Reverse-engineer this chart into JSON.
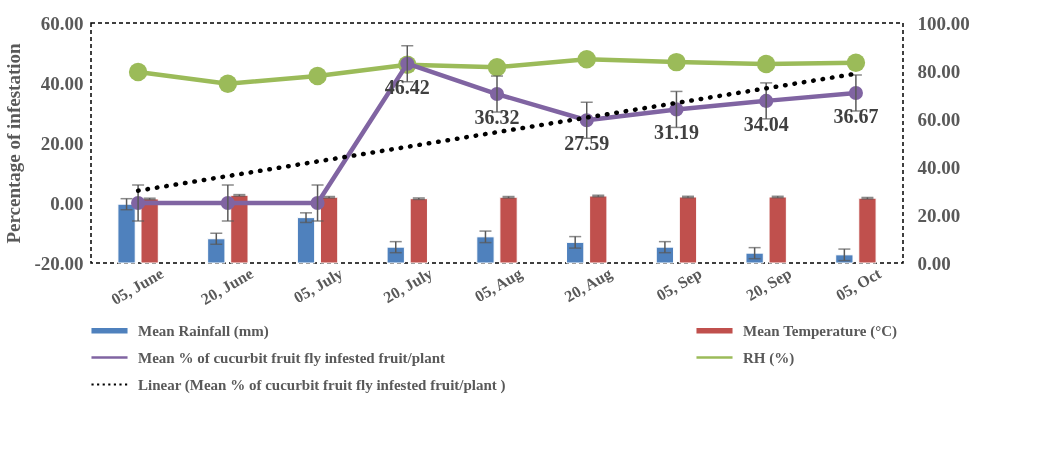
{
  "chart_data": {
    "type": "bar",
    "ylabel": "Percentage of infestation",
    "categories": [
      "05, June",
      "20, June",
      "05, July",
      "20, July",
      "05, Aug",
      "20, Aug",
      "05, Sep",
      "20, Sep",
      "05, Oct"
    ],
    "series": [
      {
        "name": "Mean Rainfall (mm)",
        "axis": "y2",
        "color": "#4f81bd",
        "values": [
          24.5,
          10.1,
          18.9,
          6.6,
          10.9,
          8.6,
          6.6,
          4.1,
          3.4
        ],
        "errors": [
          2.3,
          2.3,
          2.0,
          2.3,
          2.4,
          2.4,
          2.3,
          2.3,
          2.4
        ]
      },
      {
        "name": "Mean Temperature (°C)",
        "axis": "y2",
        "color": "#c0504d",
        "values": [
          26.7,
          28.2,
          27.4,
          26.8,
          27.4,
          27.9,
          27.5,
          27.5,
          27.0
        ],
        "errors": [
          0.3,
          0.3,
          0.3,
          0.3,
          0.3,
          0.3,
          0.3,
          0.3,
          0.3
        ]
      },
      {
        "name": "Mean % of cucurbit fruit fly infested fruit/plant",
        "type": "line",
        "color": "#8064a2",
        "marker": "circle",
        "values": [
          0,
          0,
          0,
          46.42,
          36.32,
          27.59,
          31.19,
          34.04,
          36.67
        ],
        "errors": [
          6,
          6,
          6,
          6,
          6,
          6,
          6,
          6,
          6
        ],
        "value_labels": [
          null,
          null,
          null,
          "46.42",
          "36.32",
          "27.59",
          "31.19",
          "34.04",
          "36.67"
        ]
      },
      {
        "name": "RH (%)",
        "type": "line",
        "axis": "y2",
        "color": "#9bbb59",
        "marker": "circle",
        "values": [
          79.6,
          74.7,
          77.9,
          82.6,
          81.6,
          84.9,
          83.7,
          82.9,
          83.4
        ]
      },
      {
        "name": "Linear (Mean % of cucurbit fruit fly infested fruit/plant )",
        "type": "line",
        "color": "#000000",
        "marker": "none",
        "line_style": "dotted",
        "x": [
          "05, June",
          "05, Oct"
        ],
        "values": [
          4.1,
          43.1
        ]
      }
    ],
    "ylim": [
      -20,
      60
    ],
    "yticks": [
      {
        "value": -20,
        "label": "-20.00"
      },
      {
        "value": 0,
        "label": "0.00"
      },
      {
        "value": 20,
        "label": "20.00"
      },
      {
        "value": 40,
        "label": "40.00"
      },
      {
        "value": 60,
        "label": "60.00"
      }
    ],
    "y2lim": [
      0,
      100
    ],
    "y2ticks": [
      {
        "value": 0,
        "label": "0.00"
      },
      {
        "value": 20,
        "label": "20.00"
      },
      {
        "value": 40,
        "label": "40.00"
      },
      {
        "value": 60,
        "label": "60.00"
      },
      {
        "value": 80,
        "label": "80.00"
      },
      {
        "value": 100,
        "label": "100.00"
      }
    ],
    "grid": false,
    "legend": "bottom"
  }
}
